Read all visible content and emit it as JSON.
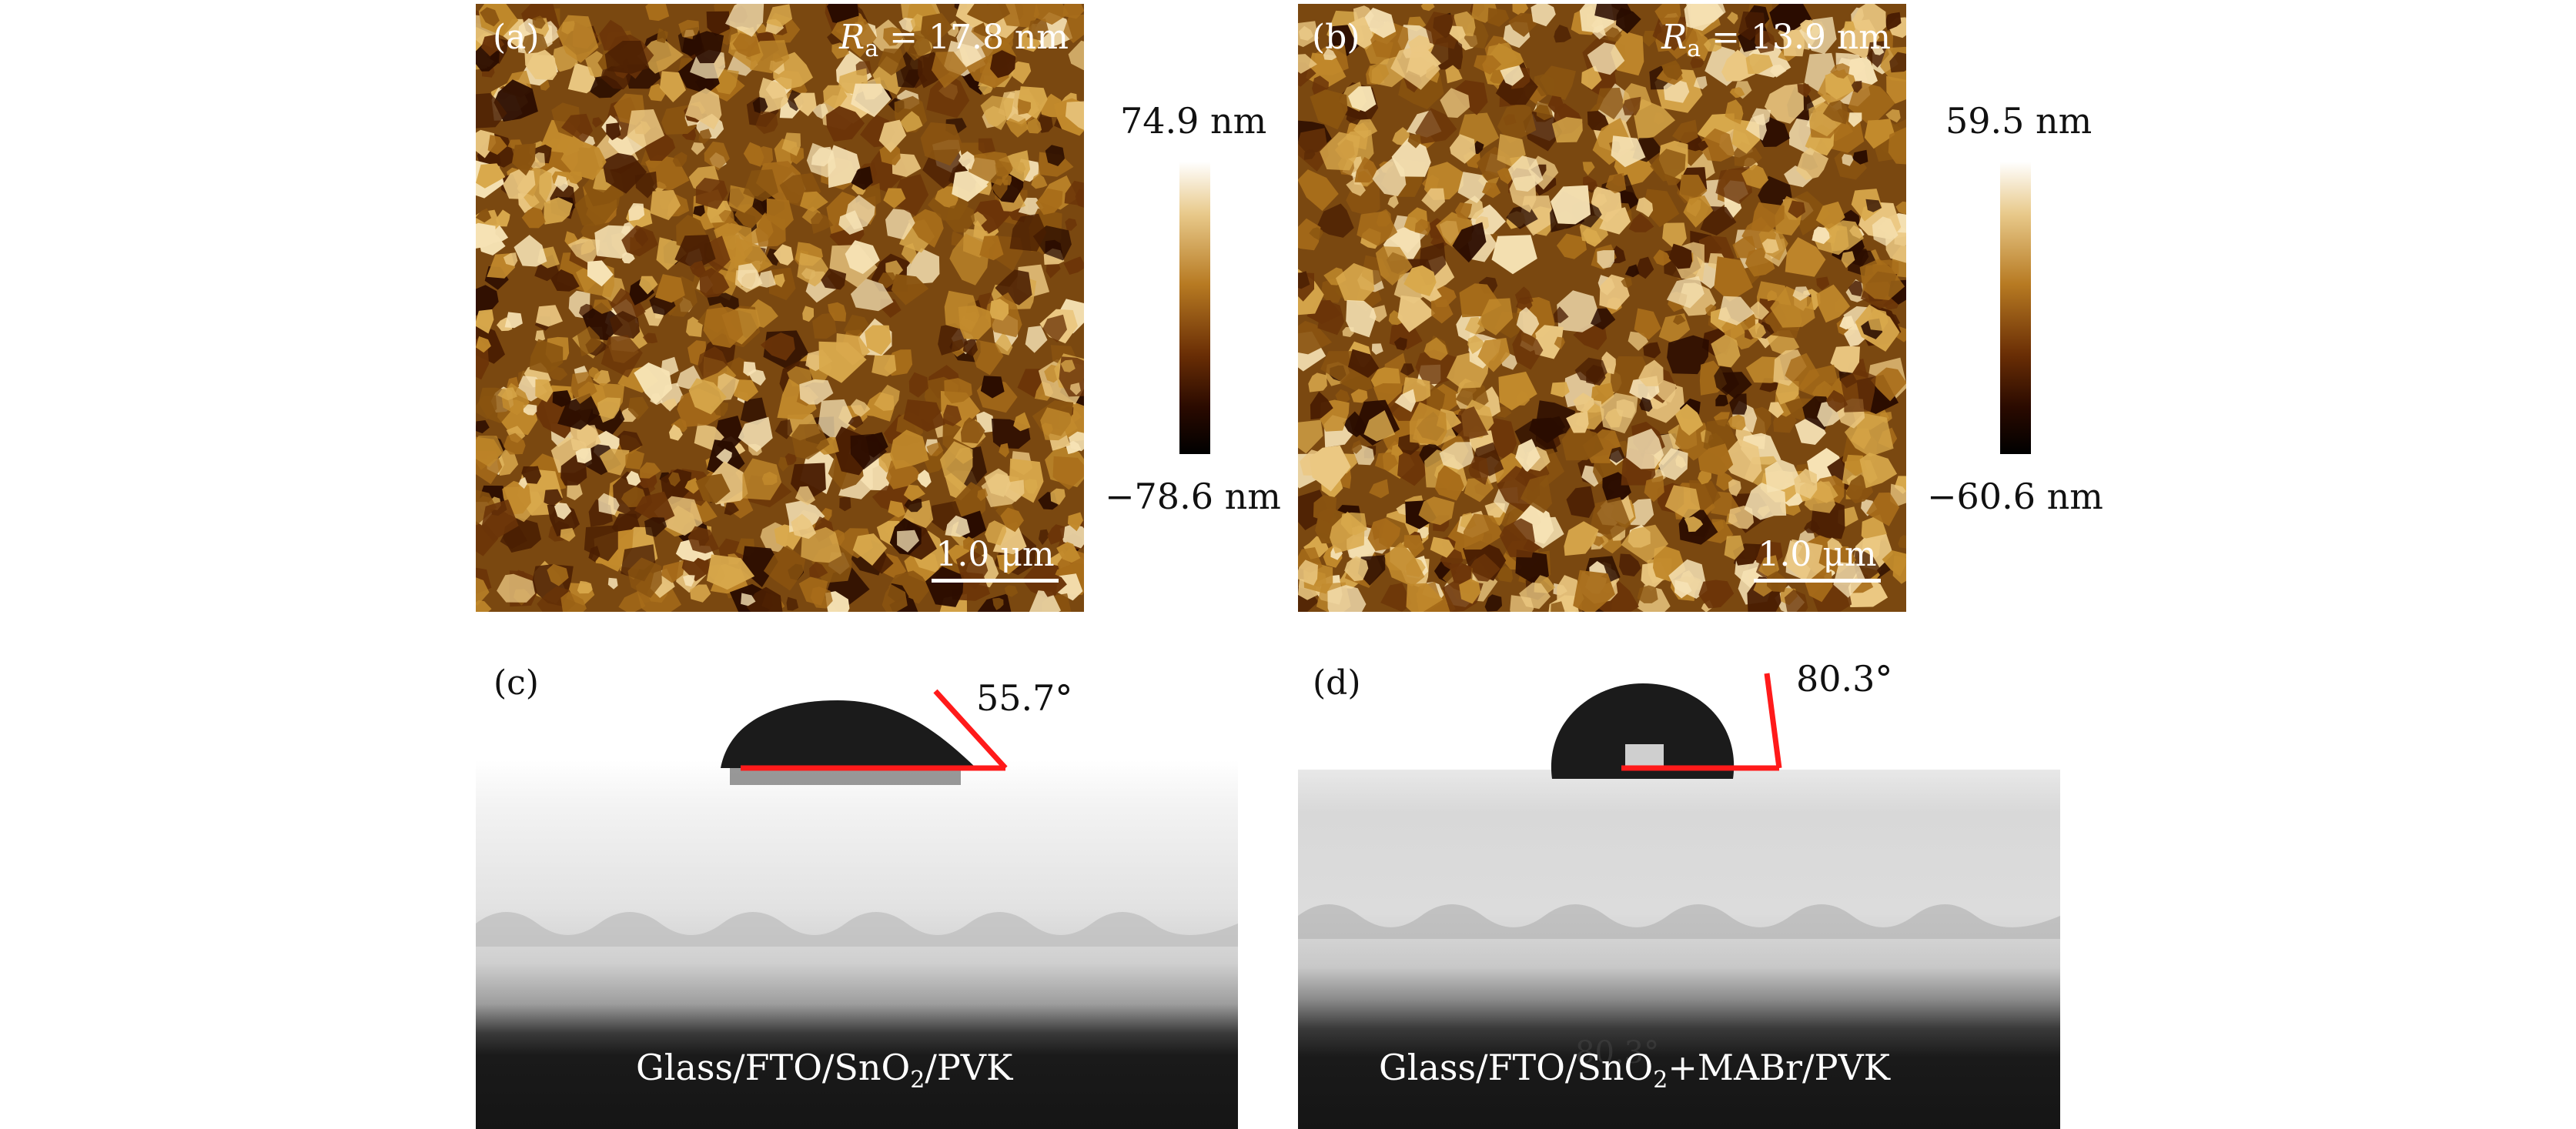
{
  "panels": {
    "a": {
      "label": "(a)",
      "ra_symbol": "R",
      "ra_sub": "a",
      "ra_value": "= 17.8 nm",
      "scale": "1.0 μm",
      "cb_top": "74.9 nm",
      "cb_bottom": "−78.6 nm"
    },
    "b": {
      "label": "(b)",
      "ra_symbol": "R",
      "ra_sub": "a",
      "ra_value": "= 13.9 nm",
      "scale": "1.0 μm",
      "cb_top": "59.5 nm",
      "cb_bottom": "−60.6 nm"
    },
    "c": {
      "label": "(c)",
      "angle": "55.7°",
      "caption_pre": "Glass/FTO/SnO",
      "caption_sub": "2",
      "caption_post": "/PVK"
    },
    "d": {
      "label": "(d)",
      "angle": "80.3°",
      "ghost": "80.3°",
      "caption_pre": "Glass/FTO/SnO",
      "caption_sub": "2",
      "caption_post": "+MABr/PVK"
    }
  },
  "colors": {
    "contact_line": "#ff1a1a",
    "afm_mid": "#8a5410",
    "afm_high": "#f3d9a0",
    "afm_low": "#2a0c00"
  }
}
